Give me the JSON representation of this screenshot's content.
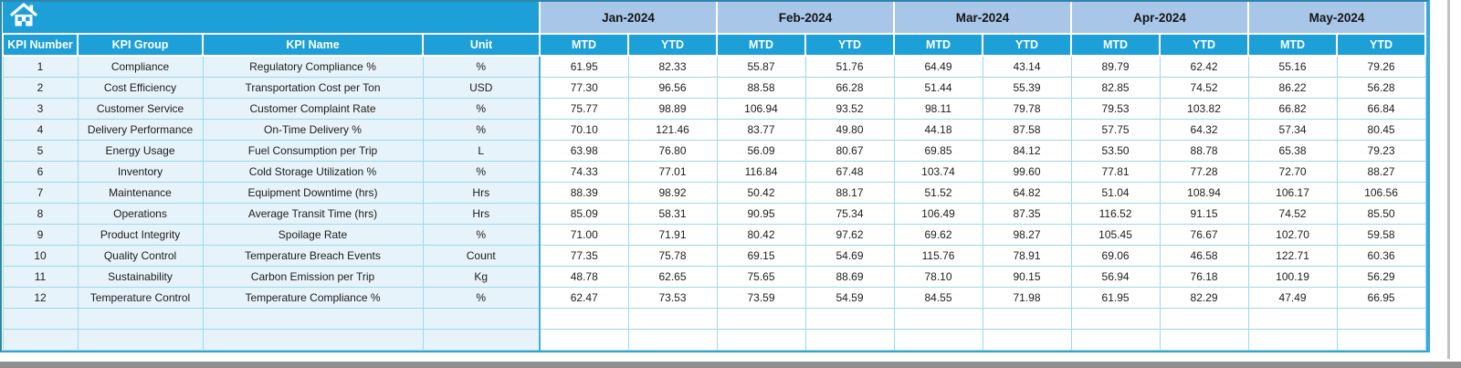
{
  "icons": {
    "home": "home"
  },
  "colors": {
    "header_teal": "#1D9FD8",
    "month_blue": "#A7C6E8",
    "row_tint": "#E7F3FA",
    "grid_cyan": "#9BDAE8",
    "outer_border": "#2E86AE",
    "bottom_bar_gray": "#8F8F8F"
  },
  "table": {
    "columns": [
      "KPI Number",
      "KPI Group",
      "KPI Name",
      "Unit"
    ],
    "months": [
      "Jan-2024",
      "Feb-2024",
      "Mar-2024",
      "Apr-2024",
      "May-2024"
    ],
    "period_types": [
      "MTD",
      "YTD"
    ],
    "empty_rows": 2,
    "rows": [
      {
        "kpi_number": "1",
        "kpi_group": "Compliance",
        "kpi_name": "Regulatory Compliance %",
        "unit": "%",
        "values": [
          "61.95",
          "82.33",
          "55.87",
          "51.76",
          "64.49",
          "43.14",
          "89.79",
          "62.42",
          "55.16",
          "79.26"
        ]
      },
      {
        "kpi_number": "2",
        "kpi_group": "Cost Efficiency",
        "kpi_name": "Transportation Cost per Ton",
        "unit": "USD",
        "values": [
          "77.30",
          "96.56",
          "88.58",
          "66.28",
          "51.44",
          "55.39",
          "82.85",
          "74.52",
          "86.22",
          "56.28"
        ]
      },
      {
        "kpi_number": "3",
        "kpi_group": "Customer Service",
        "kpi_name": "Customer Complaint Rate",
        "unit": "%",
        "values": [
          "75.77",
          "98.89",
          "106.94",
          "93.52",
          "98.11",
          "79.78",
          "79.53",
          "103.82",
          "66.82",
          "66.84"
        ]
      },
      {
        "kpi_number": "4",
        "kpi_group": "Delivery Performance",
        "kpi_name": "On-Time Delivery %",
        "unit": "%",
        "values": [
          "70.10",
          "121.46",
          "83.77",
          "49.80",
          "44.18",
          "87.58",
          "57.75",
          "64.32",
          "57.34",
          "80.45"
        ]
      },
      {
        "kpi_number": "5",
        "kpi_group": "Energy Usage",
        "kpi_name": "Fuel Consumption per Trip",
        "unit": "L",
        "values": [
          "63.98",
          "76.80",
          "56.09",
          "80.67",
          "69.85",
          "84.12",
          "53.50",
          "88.78",
          "65.38",
          "79.23"
        ]
      },
      {
        "kpi_number": "6",
        "kpi_group": "Inventory",
        "kpi_name": "Cold Storage Utilization %",
        "unit": "%",
        "values": [
          "74.33",
          "77.01",
          "116.84",
          "67.48",
          "103.74",
          "99.60",
          "77.81",
          "77.28",
          "72.70",
          "88.27"
        ]
      },
      {
        "kpi_number": "7",
        "kpi_group": "Maintenance",
        "kpi_name": "Equipment Downtime (hrs)",
        "unit": "Hrs",
        "values": [
          "88.39",
          "98.92",
          "50.42",
          "88.17",
          "51.52",
          "64.82",
          "51.04",
          "108.94",
          "106.17",
          "106.56"
        ]
      },
      {
        "kpi_number": "8",
        "kpi_group": "Operations",
        "kpi_name": "Average Transit Time (hrs)",
        "unit": "Hrs",
        "values": [
          "85.09",
          "58.31",
          "90.95",
          "75.34",
          "106.49",
          "87.35",
          "116.52",
          "91.15",
          "74.52",
          "85.50"
        ]
      },
      {
        "kpi_number": "9",
        "kpi_group": "Product Integrity",
        "kpi_name": "Spoilage Rate",
        "unit": "%",
        "values": [
          "71.00",
          "71.91",
          "80.42",
          "97.62",
          "69.62",
          "98.27",
          "105.45",
          "76.67",
          "102.70",
          "59.58"
        ]
      },
      {
        "kpi_number": "10",
        "kpi_group": "Quality Control",
        "kpi_name": "Temperature Breach Events",
        "unit": "Count",
        "values": [
          "77.35",
          "75.78",
          "69.15",
          "54.69",
          "115.76",
          "78.91",
          "69.06",
          "46.58",
          "122.71",
          "60.36"
        ]
      },
      {
        "kpi_number": "11",
        "kpi_group": "Sustainability",
        "kpi_name": "Carbon Emission per Trip",
        "unit": "Kg",
        "values": [
          "48.78",
          "62.65",
          "75.65",
          "88.69",
          "78.10",
          "90.15",
          "56.94",
          "76.18",
          "100.19",
          "56.29"
        ]
      },
      {
        "kpi_number": "12",
        "kpi_group": "Temperature Control",
        "kpi_name": "Temperature Compliance %",
        "unit": "%",
        "values": [
          "62.47",
          "73.53",
          "73.59",
          "54.59",
          "84.55",
          "71.98",
          "61.95",
          "82.29",
          "47.49",
          "66.95"
        ]
      }
    ]
  }
}
